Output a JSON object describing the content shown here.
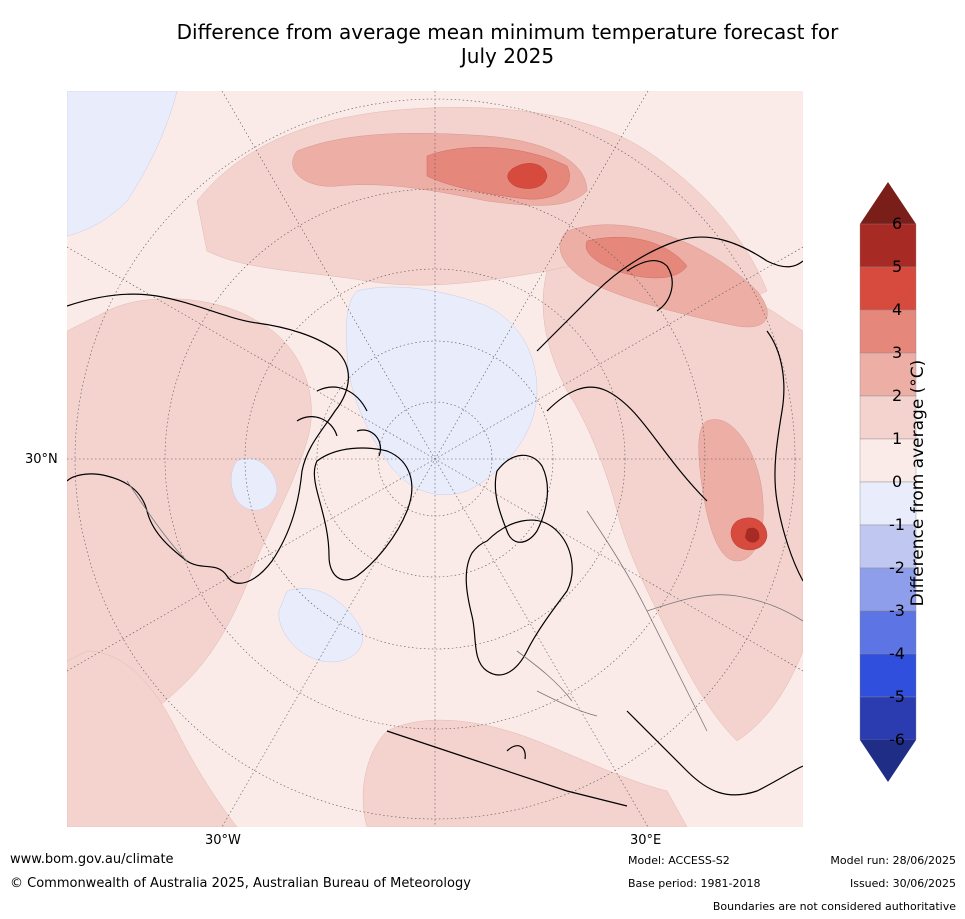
{
  "title": {
    "line1": "Difference from average mean minimum temperature forecast for",
    "line2": "July 2025"
  },
  "graticule_labels": {
    "left": "30°N",
    "bottom_left": "30°W",
    "bottom_right": "30°E"
  },
  "colorbar": {
    "label": "Difference from average (°C)",
    "ticks": [
      "6",
      "5",
      "4",
      "3",
      "2",
      "1",
      "0",
      "-1",
      "-2",
      "-3",
      "-4",
      "-5",
      "-6"
    ],
    "colors": {
      "above_6": "#7a1e1a",
      "5_to_6": "#a82a24",
      "4_to_5": "#d74b3f",
      "3_to_4": "#e6877c",
      "2_to_3": "#edaea6",
      "1_to_2": "#f4d3cf",
      "0_to_1": "#fbebe8",
      "m1_to_0": "#e8ecfb",
      "m2_to_m1": "#c0c8f2",
      "m3_to_m2": "#8f9eeb",
      "m4_to_m3": "#5c74e4",
      "m5_to_m4": "#2f4fdc",
      "m6_to_m5": "#2a3cb0",
      "below_m6": "#1f2d86"
    }
  },
  "footer": {
    "website": "www.bom.gov.au/climate",
    "copyright": "© Commonwealth of Australia 2025, Australian Bureau of Meteorology",
    "model": "Model: ACCESS-S2",
    "base_period": "Base period: 1981-2018",
    "model_run": "Model run: 28/06/2025",
    "issued": "Issued: 30/06/2025",
    "disclaimer": "Boundaries are not considered authoritative"
  }
}
